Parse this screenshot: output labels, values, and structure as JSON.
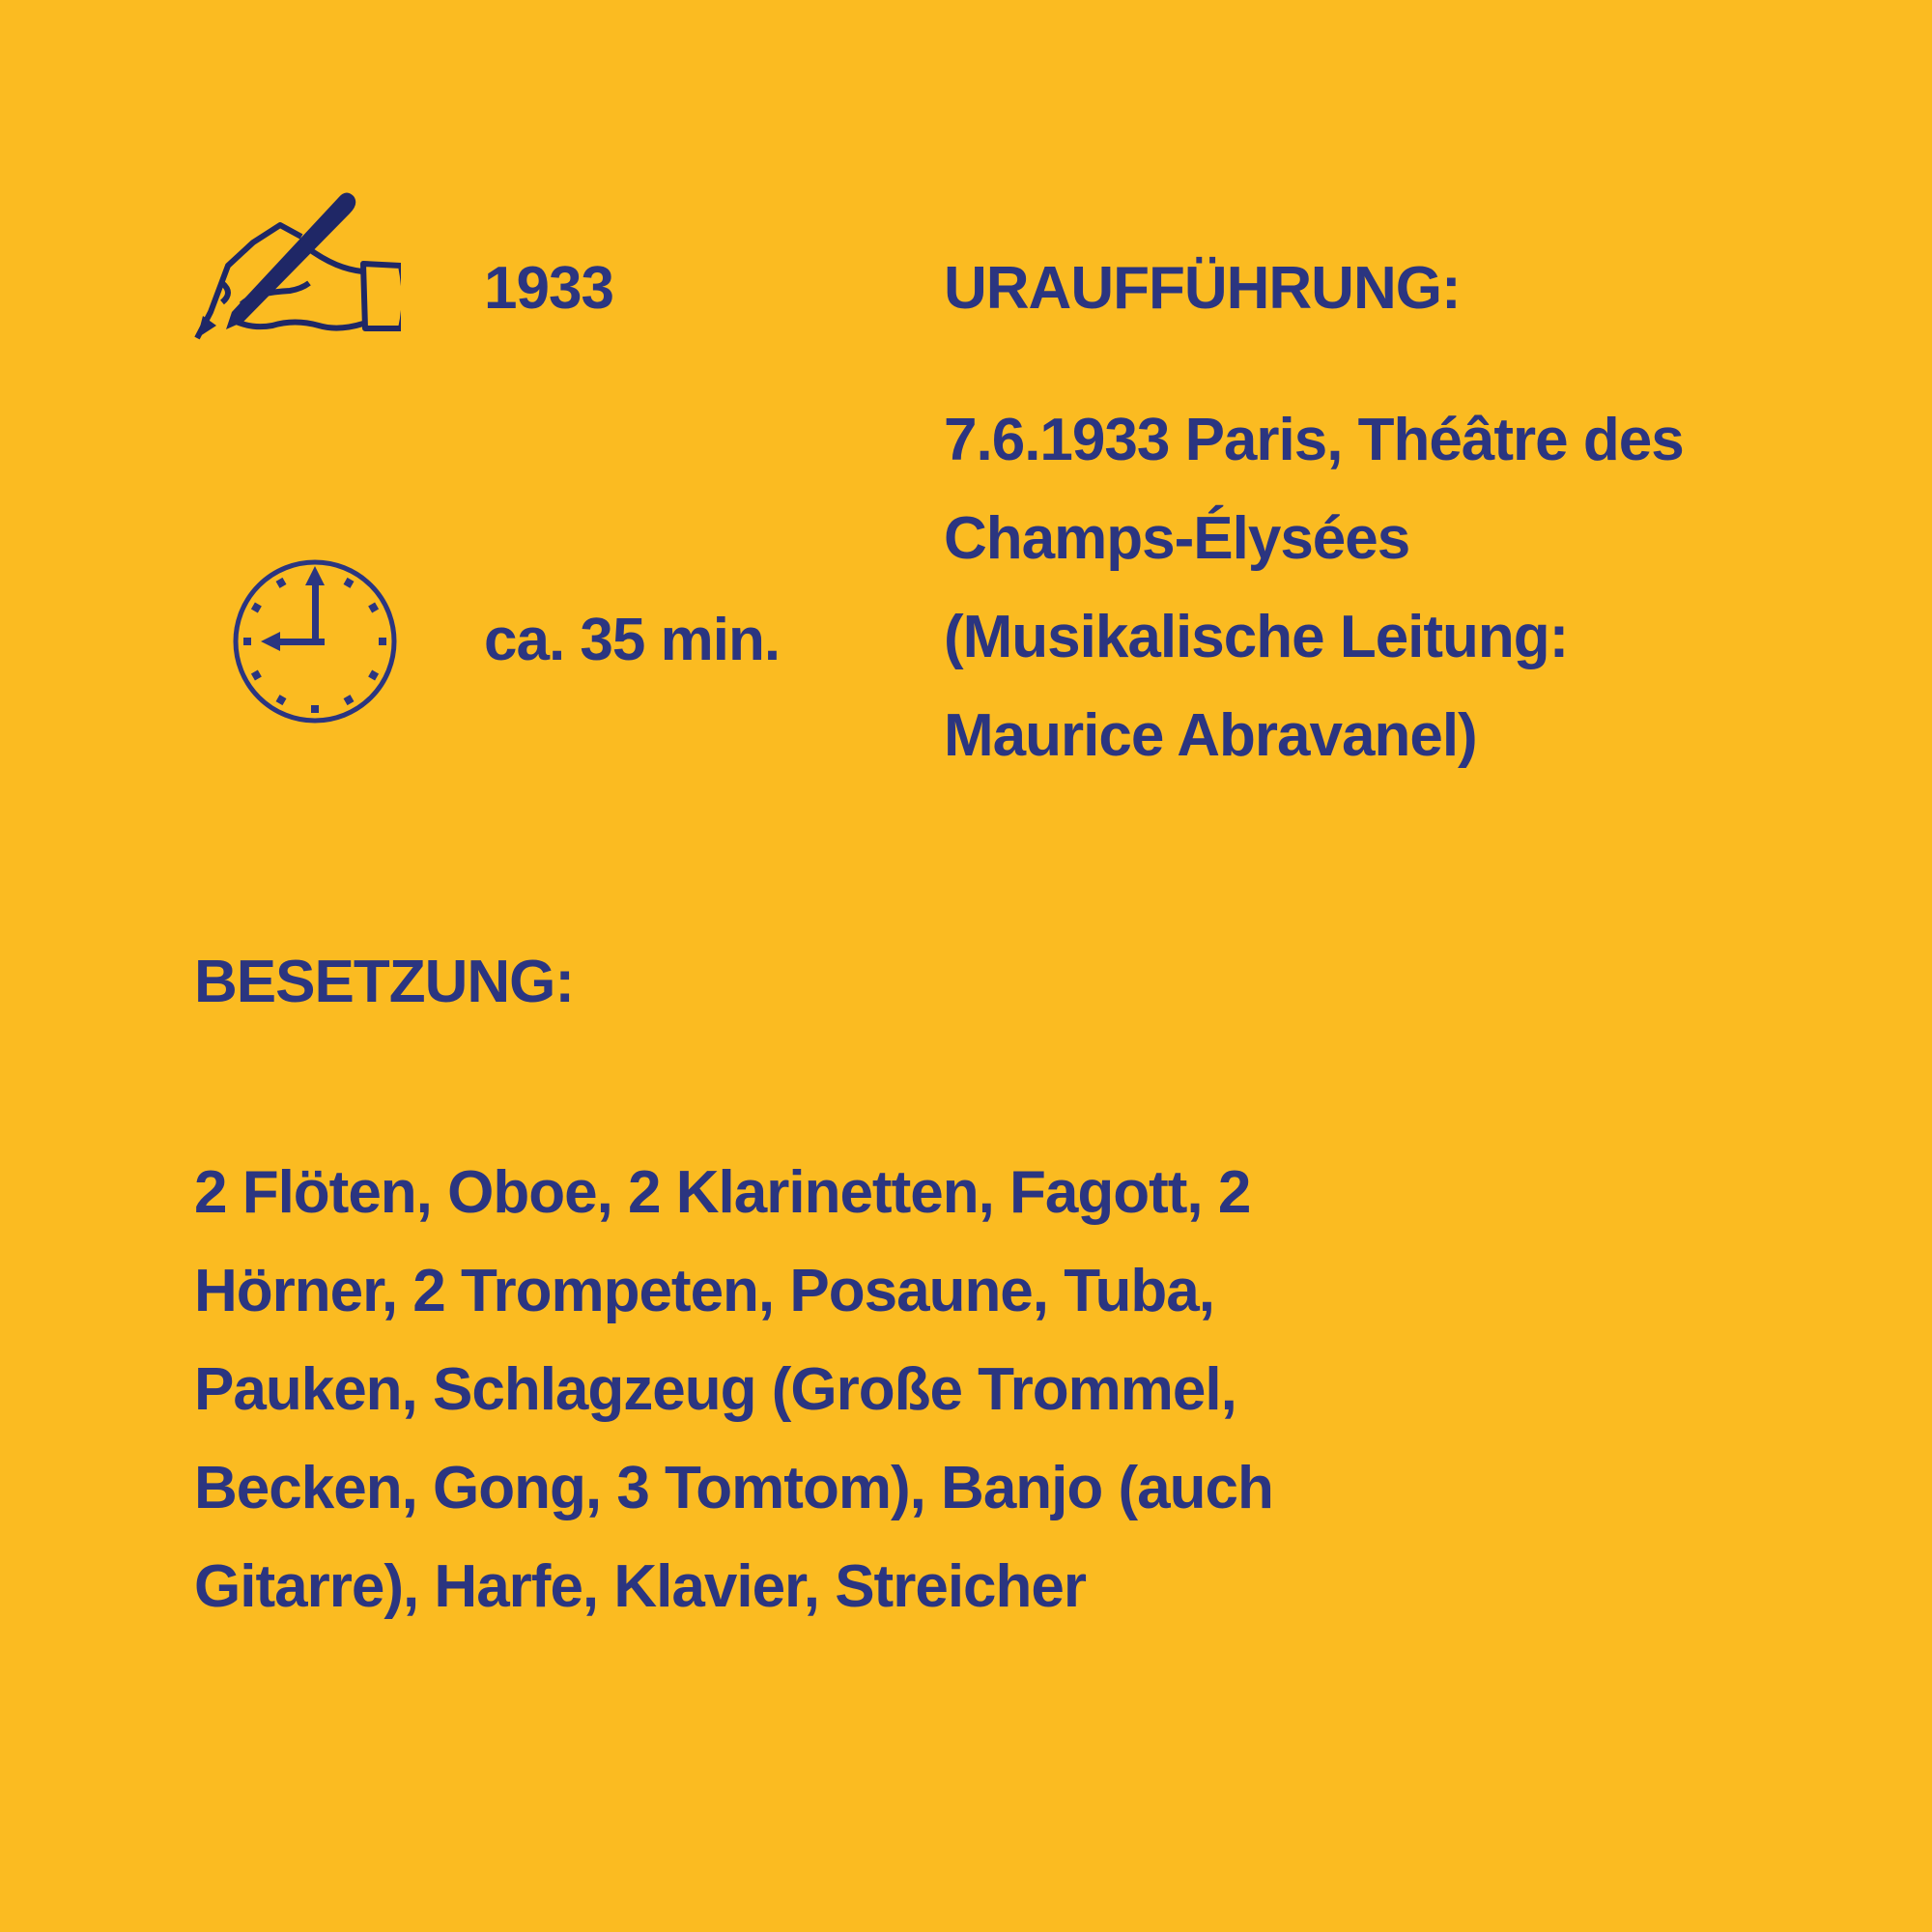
{
  "colors": {
    "background": "#FBBB21",
    "text": "#2B3580"
  },
  "composition": {
    "icon": "writing-hand-icon",
    "year": "1933"
  },
  "duration": {
    "icon": "clock-icon",
    "value": "ca. 35 min."
  },
  "premiere": {
    "heading": "URAUFFÜHRUNG:",
    "lines": [
      "7.6.1933 Paris, Théâtre des",
      "Champs-Élysées",
      "(Musikalische Leitung:",
      "Maurice Abravanel)"
    ]
  },
  "instrumentation": {
    "heading": "BESETZUNG:",
    "lines": [
      "2 Flöten, Oboe, 2 Klarinetten, Fagott, 2",
      "Hörner, 2 Trompeten, Posaune, Tuba,",
      "Pauken, Schlagzeug (Große Trommel,",
      "Becken, Gong, 3 Tomtom), Banjo (auch",
      "Gitarre), Harfe, Klavier, Streicher"
    ]
  }
}
